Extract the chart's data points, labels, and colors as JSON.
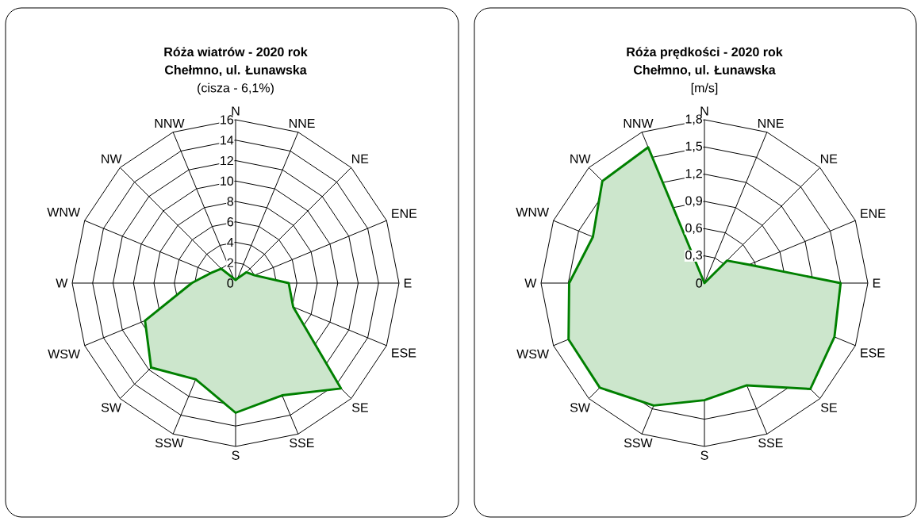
{
  "chart_data": [
    {
      "type": "radar",
      "title": "Róża wiatrów - 2020 rok",
      "subtitle": "Chełmno, ul. Łunawska",
      "annotations": [
        "(cisza - 6,1%)"
      ],
      "categories": [
        "N",
        "NNE",
        "NE",
        "ENE",
        "E",
        "ESE",
        "SE",
        "SSE",
        "S",
        "SSW",
        "SW",
        "WSW",
        "W",
        "WNW",
        "NW",
        "NNW"
      ],
      "series": [
        {
          "color": "#008000",
          "values": [
            0.3,
            0.5,
            1.5,
            2.0,
            5.2,
            6.1,
            14.6,
            11.9,
            12.7,
            10.2,
            11.7,
            9.6,
            4.3,
            2.6,
            2.0,
            0.5
          ]
        }
      ],
      "ylim": [
        0,
        16
      ],
      "yticks": [
        0,
        2,
        4,
        6,
        8,
        10,
        12,
        14,
        16
      ],
      "grid": true
    },
    {
      "type": "radar",
      "title": "Róża prędkości - 2020 rok",
      "subtitle": "Chełmno, ul. Łunawska",
      "ylabel": "[m/s]",
      "categories": [
        "N",
        "NNE",
        "NE",
        "ENE",
        "E",
        "ESE",
        "SE",
        "SSE",
        "S",
        "SSW",
        "SW",
        "WSW",
        "W",
        "WNW",
        "NW",
        "NNW"
      ],
      "series": [
        {
          "color": "#008000",
          "values": [
            0,
            0,
            0.35,
            0.53,
            1.5,
            1.55,
            1.65,
            1.22,
            1.29,
            1.46,
            1.63,
            1.62,
            1.49,
            1.33,
            1.59,
            1.62
          ]
        }
      ],
      "ylim": [
        0,
        1.8
      ],
      "yticks": [
        0,
        {
          "value": 0.3,
          "label": "0,3"
        },
        {
          "value": 0.6,
          "label": "0,6"
        },
        {
          "value": 0.9,
          "label": "0,9"
        },
        {
          "value": 1.2,
          "label": "1,2"
        },
        {
          "value": 1.5,
          "label": "1,5"
        },
        {
          "value": 1.8,
          "label": "1,8"
        }
      ],
      "grid": true
    }
  ]
}
